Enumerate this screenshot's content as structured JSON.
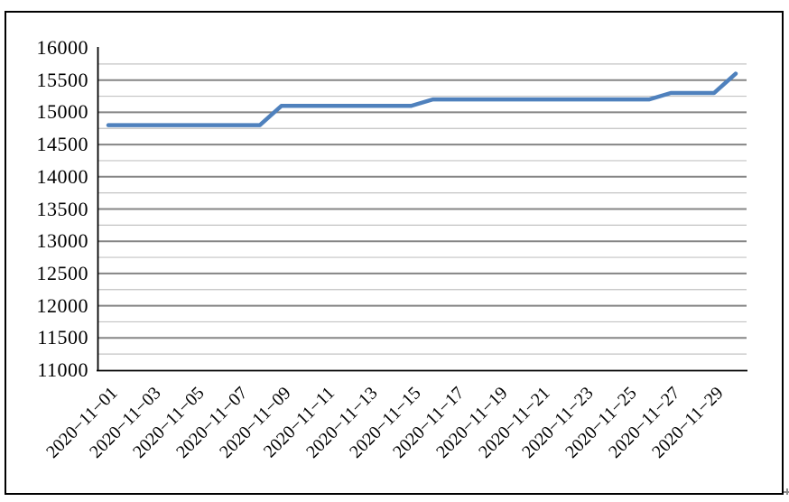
{
  "chart_data": {
    "type": "line",
    "title": "",
    "legend": "none",
    "grid": true,
    "dates": [
      "2020-11-01",
      "2020-11-02",
      "2020-11-03",
      "2020-11-04",
      "2020-11-05",
      "2020-11-06",
      "2020-11-07",
      "2020-11-08",
      "2020-11-09",
      "2020-11-10",
      "2020-11-11",
      "2020-11-12",
      "2020-11-13",
      "2020-11-14",
      "2020-11-15",
      "2020-11-16",
      "2020-11-17",
      "2020-11-18",
      "2020-11-19",
      "2020-11-20",
      "2020-11-21",
      "2020-11-22",
      "2020-11-23",
      "2020-11-24",
      "2020-11-25",
      "2020-11-26",
      "2020-11-27",
      "2020-11-28",
      "2020-11-29",
      "2020-11-30"
    ],
    "values": [
      14800,
      14800,
      14800,
      14800,
      14800,
      14800,
      14800,
      14800,
      15100,
      15100,
      15100,
      15100,
      15100,
      15100,
      15100,
      15200,
      15200,
      15200,
      15200,
      15200,
      15200,
      15200,
      15200,
      15200,
      15200,
      15200,
      15300,
      15300,
      15300,
      15600
    ],
    "x_tick_labels": [
      "2020−11−01",
      "2020−11−03",
      "2020−11−05",
      "2020−11−07",
      "2020−11−09",
      "2020−11−11",
      "2020−11−13",
      "2020−11−15",
      "2020−11−17",
      "2020−11−19",
      "2020−11−21",
      "2020−11−23",
      "2020−11−25",
      "2020−11−27",
      "2020−11−29"
    ],
    "x_tick_step": 2,
    "y_tick_values": [
      11000,
      11500,
      12000,
      12500,
      13000,
      13500,
      14000,
      14500,
      15000,
      15500,
      16000
    ],
    "y_tick_labels": [
      "11000",
      "11500",
      "12000",
      "12500",
      "13000",
      "13500",
      "14000",
      "14500",
      "15000",
      "15500",
      "16000"
    ],
    "ylim": [
      11000,
      16000
    ],
    "y_major_step": 500,
    "y_minor_step": 250,
    "colors": {
      "line": "#4F81BD",
      "major_grid": "#858585",
      "minor_grid": "#C3C3C3",
      "axis": "#000000",
      "border": "#000000",
      "background": "#FFFFFF",
      "text": "#000000"
    }
  }
}
